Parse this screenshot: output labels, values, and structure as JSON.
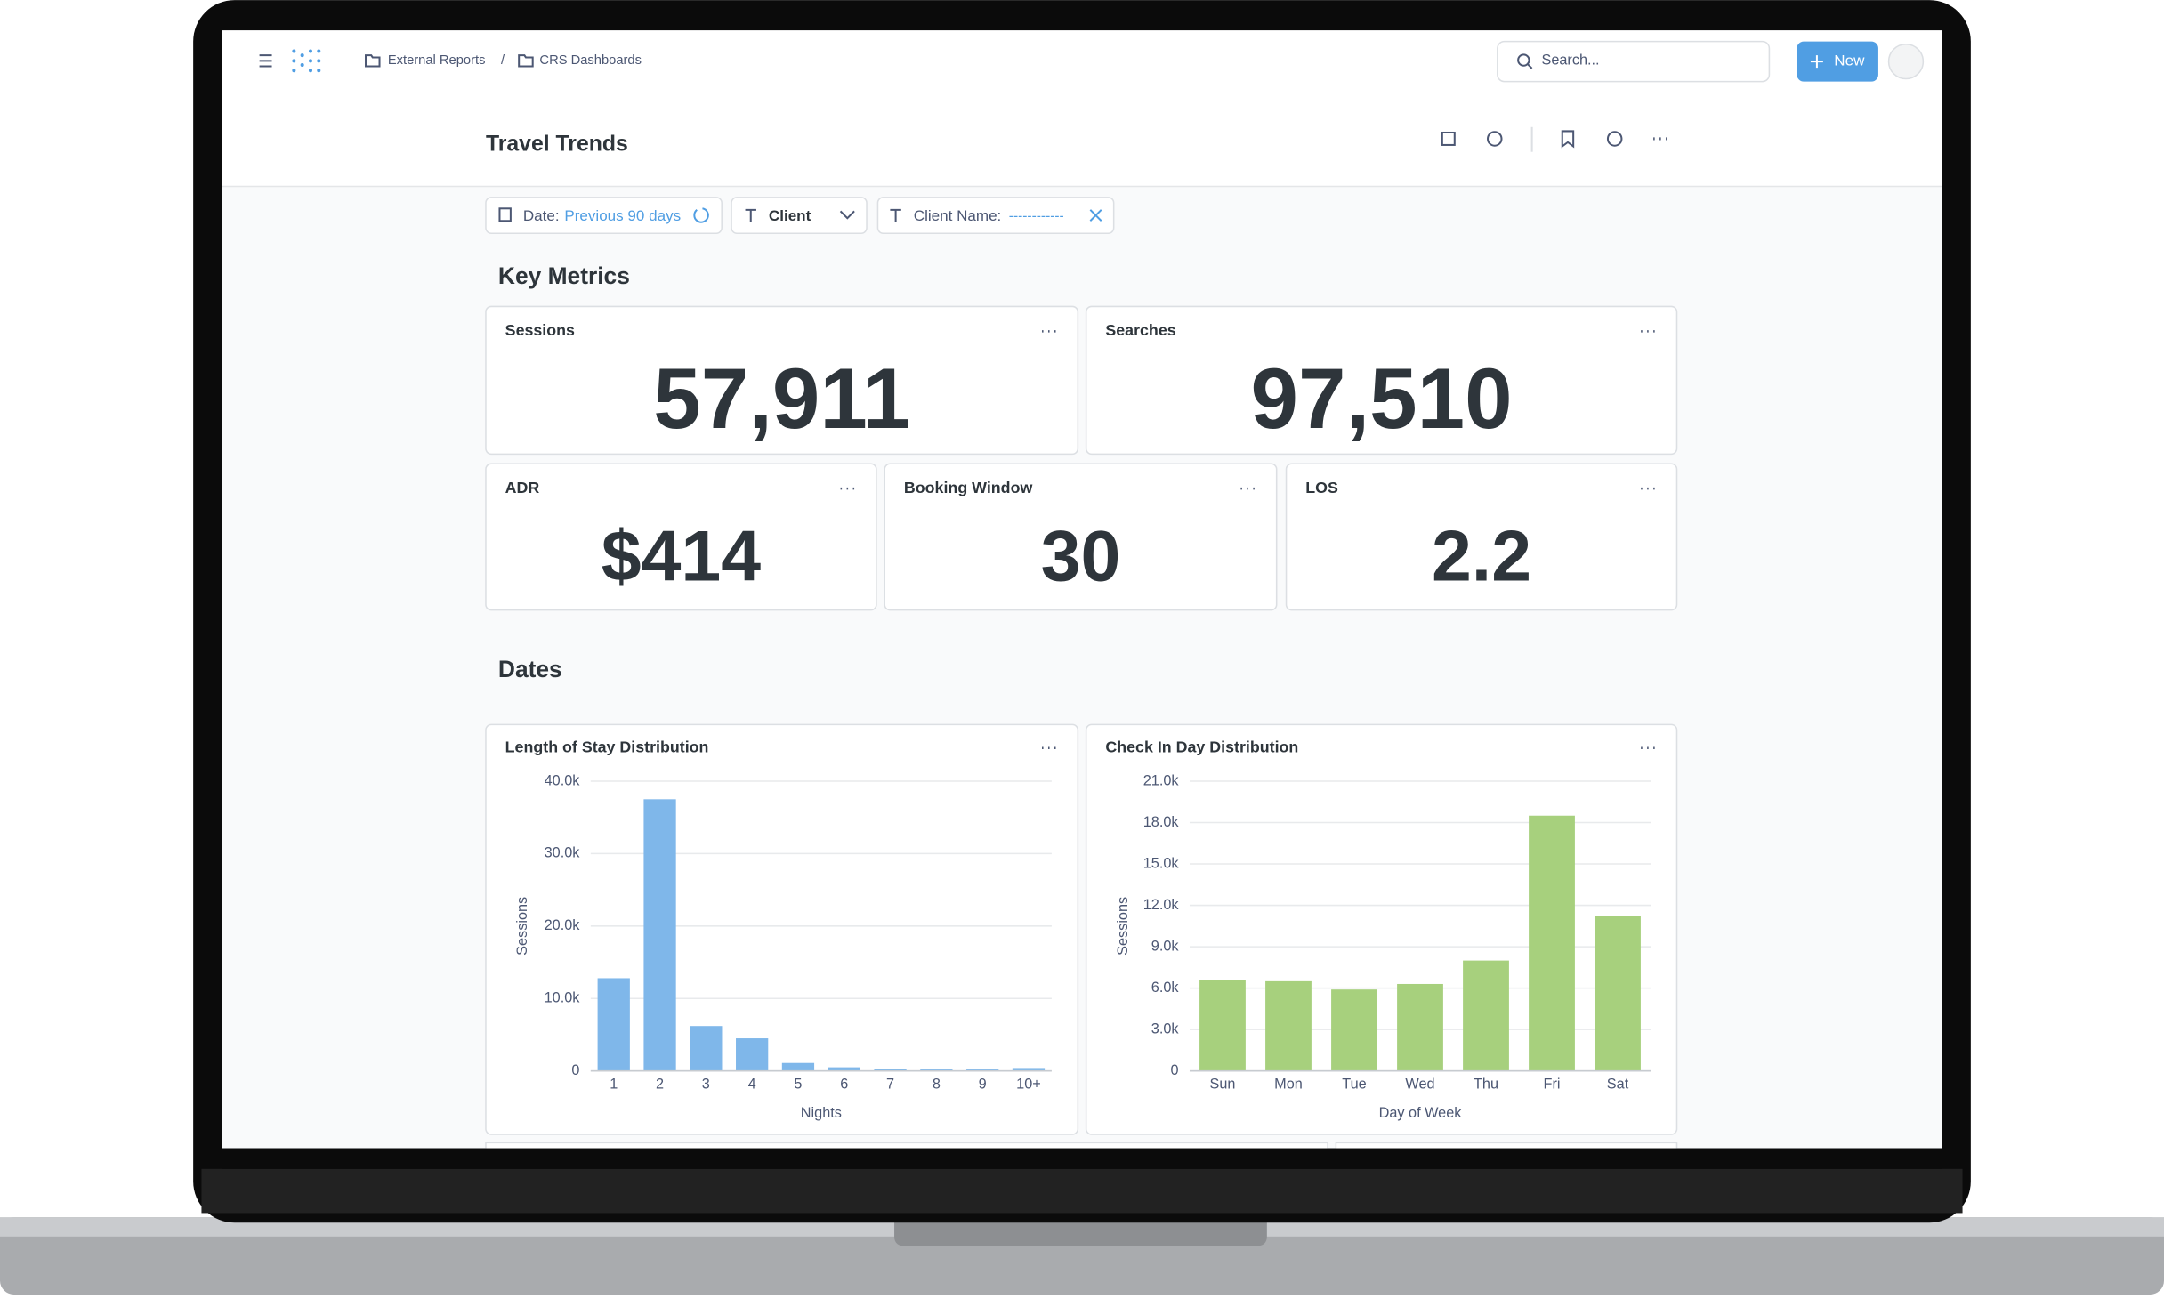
{
  "header": {
    "breadcrumbs": [
      "External Reports",
      "/",
      "CRS Dashboards"
    ],
    "search": "Search...",
    "new_button": "New"
  },
  "dashboard": {
    "title": "Travel Trends",
    "filters": [
      {
        "label": "Date:",
        "value": "Previous 90 days"
      },
      {
        "label": "Client"
      },
      {
        "label": "Client Name:",
        "value": "------------"
      }
    ],
    "sections": [
      "Key Metrics",
      "Dates"
    ],
    "metrics": [
      {
        "title": "Sessions",
        "value": "57,911"
      },
      {
        "title": "Searches",
        "value": "97,510"
      },
      {
        "title": "ADR",
        "value": "$414"
      },
      {
        "title": "Booking Window",
        "value": "30"
      },
      {
        "title": "LOS",
        "value": "2.2"
      }
    ]
  },
  "chart_data": [
    {
      "type": "bar",
      "title": "Length of Stay Distribution",
      "x_label": "Nights",
      "y_label": "Sessions",
      "color": "#7fb7ea",
      "grid": true,
      "categories": [
        "1",
        "2",
        "3",
        "4",
        "5",
        "6",
        "7",
        "8",
        "9",
        "10+"
      ],
      "values": [
        12800,
        37500,
        6200,
        4500,
        1100,
        500,
        300,
        200,
        200,
        400
      ],
      "ylim": [
        0,
        40000
      ],
      "yticks": [
        0,
        {
          "value": 10000,
          "label": "10.0k"
        },
        {
          "value": 20000,
          "label": "20.0k"
        },
        {
          "value": 30000,
          "label": "30.0k"
        },
        {
          "value": 40000,
          "label": "40.0k"
        }
      ]
    },
    {
      "type": "bar",
      "title": "Check In Day Distribution",
      "x_label": "Day of Week",
      "y_label": "Sessions",
      "color": "#a7d07d",
      "grid": true,
      "categories": [
        "Sun",
        "Mon",
        "Tue",
        "Wed",
        "Thu",
        "Fri",
        "Sat"
      ],
      "values": [
        6600,
        6500,
        5900,
        6300,
        8000,
        18500,
        11200
      ],
      "ylim": [
        0,
        21000
      ],
      "yticks": [
        0,
        {
          "value": 3000,
          "label": "3.0k"
        },
        {
          "value": 6000,
          "label": "6.0k"
        },
        {
          "value": 9000,
          "label": "9.0k"
        },
        {
          "value": 12000,
          "label": "12.0k"
        },
        {
          "value": 15000,
          "label": "15.0k"
        },
        {
          "value": 18000,
          "label": "18.0k"
        },
        {
          "value": 21000,
          "label": "21.0k"
        }
      ]
    }
  ]
}
